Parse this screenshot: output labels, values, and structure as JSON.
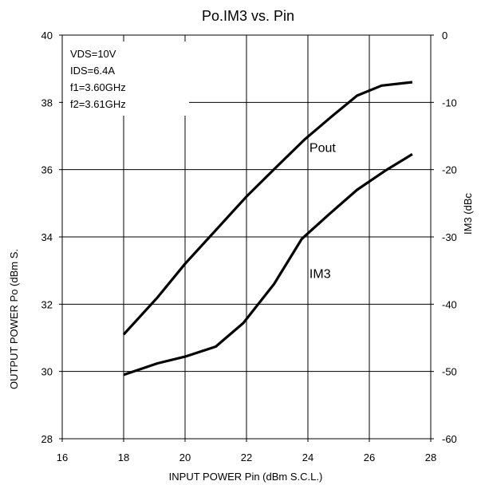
{
  "chart_data": {
    "type": "line",
    "title": "Po.IM3 vs. Pin",
    "xlabel": "INPUT POWER Pin (dBm S.C.L.)",
    "ylabel": "OUTPUT POWER Po (dBm S.",
    "y2label": "IM3 (dBc",
    "xlim": [
      16,
      28
    ],
    "ylim": [
      28,
      40
    ],
    "y2lim": [
      -60,
      0
    ],
    "grid": true,
    "x_ticks": [
      "16",
      "18",
      "20",
      "22",
      "24",
      "26",
      "28"
    ],
    "y_ticks": [
      "28",
      "30",
      "32",
      "34",
      "36",
      "38",
      "40"
    ],
    "y2_ticks": [
      "-60",
      "-50",
      "-40",
      "-30",
      "-20",
      "-10",
      "0"
    ],
    "conditions": [
      "VDS=10V",
      "IDS=6.4A",
      "f1=3.60GHz",
      "f2=3.61GHz"
    ],
    "series": [
      {
        "name": "Pout",
        "axis": "left",
        "x": [
          18,
          19.1,
          20,
          21,
          22,
          23,
          23.9,
          24.8,
          25.6,
          26.4,
          27.4
        ],
        "y": [
          31.1,
          32.2,
          33.2,
          34.2,
          35.2,
          36.1,
          36.9,
          37.6,
          38.2,
          38.5,
          38.6
        ]
      },
      {
        "name": "IM3",
        "axis": "right",
        "x": [
          18,
          19.1,
          20,
          21,
          21.9,
          22.9,
          23.8,
          24.7,
          25.6,
          26.5,
          27.4
        ],
        "y": [
          -50.5,
          -48.8,
          -47.8,
          -46.3,
          -42.8,
          -37,
          -30.3,
          -26.6,
          -23,
          -20.2,
          -17.7
        ]
      }
    ],
    "annotations": [
      {
        "text": "Pout",
        "x": 24.05,
        "y": 36.52
      },
      {
        "text": "IM3",
        "x": 24.05,
        "y": 32.78
      }
    ]
  }
}
